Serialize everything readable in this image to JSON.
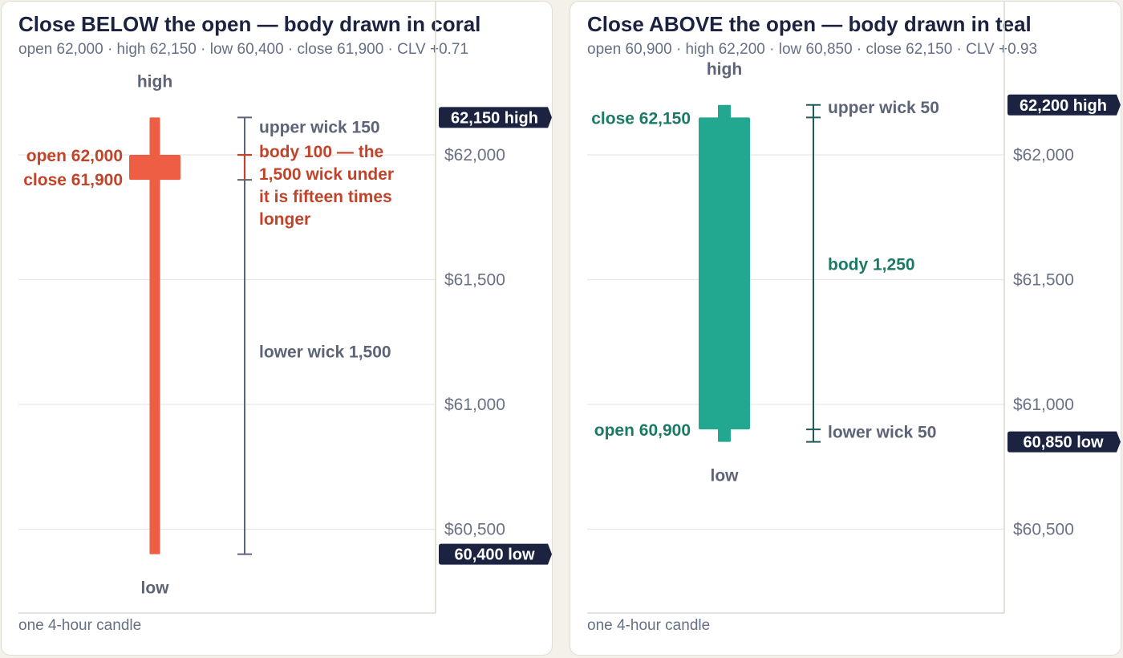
{
  "colors": {
    "coral": "#ee5e45",
    "coral_text": "#c0432a",
    "teal": "#22a791",
    "teal_text": "#1b7a66",
    "navy": "#1b2340",
    "slate": "#5d6478",
    "grid": "#e7e7e7",
    "axis": "#dcd8cf"
  },
  "chart_data": [
    {
      "type": "candlestick",
      "title": "Close BELOW the open — body drawn in coral",
      "subtitle": "open 62,000 · high 62,150 · low 60,400 · close 61,900 · CLV +0.71",
      "caption": "one 4-hour candle",
      "candle": {
        "open": 62000,
        "high": 62150,
        "low": 60400,
        "close": 61900
      },
      "body_color": "coral",
      "ylim": [
        60200,
        62800
      ],
      "y_ticks": [
        {
          "value": 62000,
          "label": "$62,000"
        },
        {
          "value": 61500,
          "label": "$61,500"
        },
        {
          "value": 61000,
          "label": "$61,000"
        },
        {
          "value": 60500,
          "label": "$60,500"
        }
      ],
      "flags": [
        {
          "value": 62150,
          "label": "62,150 high"
        },
        {
          "value": 60400,
          "label": "60,400 low"
        }
      ],
      "point_labels": {
        "high": "high",
        "low": "low",
        "open": "open 62,000",
        "close": "close 61,900"
      },
      "measure_labels": {
        "upper": "upper wick 150",
        "body": "body 100 — the 1,500 wick under it is fifteen times longer",
        "body_lines": [
          "body 100 — the",
          "1,500 wick under",
          "it is fifteen times",
          "longer"
        ],
        "lower": "lower wick 1,500"
      }
    },
    {
      "type": "candlestick",
      "title": "Close ABOVE the open — body drawn in teal",
      "subtitle": "open 60,900 · high 62,200 · low 60,850 · close 62,150 · CLV +0.93",
      "caption": "one 4-hour candle",
      "candle": {
        "open": 60900,
        "high": 62200,
        "low": 60850,
        "close": 62150
      },
      "body_color": "teal",
      "ylim": [
        60200,
        62800
      ],
      "y_ticks": [
        {
          "value": 62000,
          "label": "$62,000"
        },
        {
          "value": 61500,
          "label": "$61,500"
        },
        {
          "value": 61000,
          "label": "$61,000"
        },
        {
          "value": 60500,
          "label": "$60,500"
        }
      ],
      "flags": [
        {
          "value": 62200,
          "label": "62,200 high"
        },
        {
          "value": 60850,
          "label": "60,850 low"
        }
      ],
      "point_labels": {
        "high": "high",
        "low": "low",
        "open": "open 60,900",
        "close": "close 62,150"
      },
      "measure_labels": {
        "upper": "upper wick 50",
        "body": "body 1,250",
        "body_lines": [
          "body 1,250"
        ],
        "lower": "lower wick 50"
      }
    }
  ]
}
